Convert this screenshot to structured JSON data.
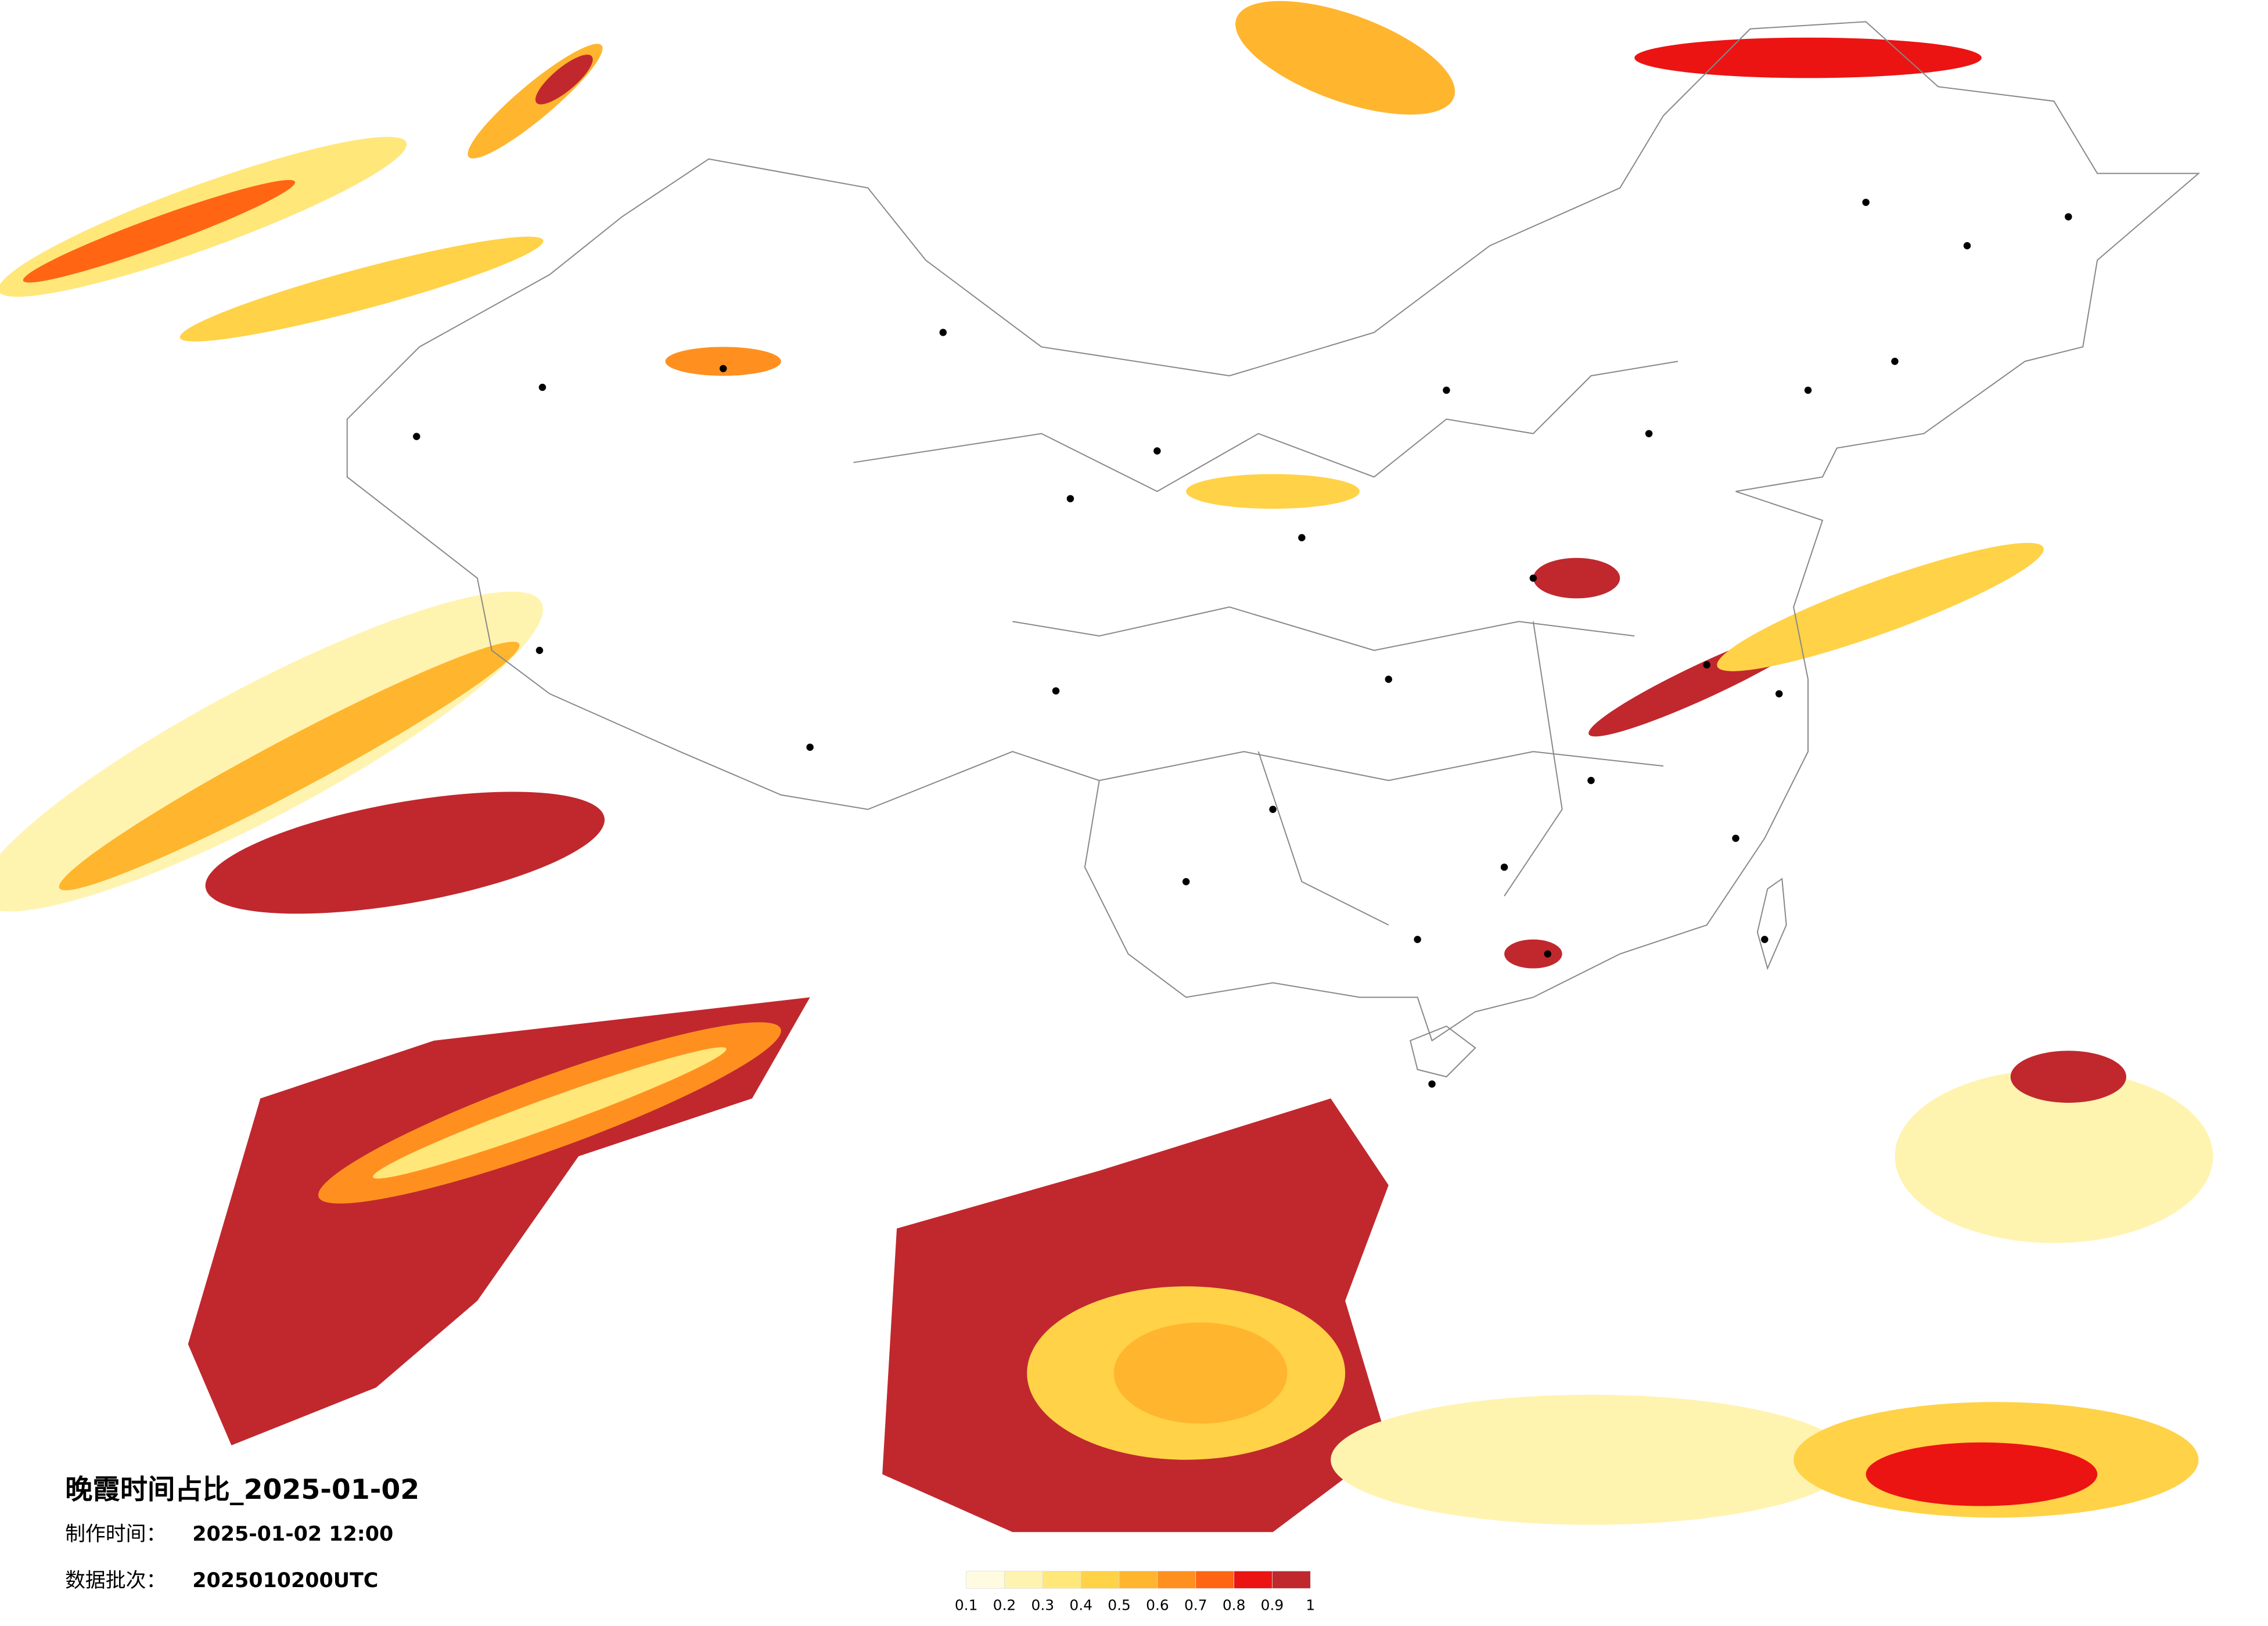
{
  "title": "晚霞时间占比_2025-01-02",
  "production_time": {
    "label": "制作时间：",
    "value": "2025-01-02 12:00"
  },
  "data_batch": {
    "label": "数据批次：",
    "value": "2025010200UTC"
  },
  "legend": {
    "ticks": [
      0.1,
      0.2,
      0.3,
      0.4,
      0.5,
      0.6,
      0.7,
      0.8,
      0.9,
      1
    ],
    "colors": [
      "#fffbe0",
      "#fff3b0",
      "#ffe77a",
      "#ffd247",
      "#ffb52e",
      "#ff9020",
      "#ff6512",
      "#ec1313",
      "#c0282e"
    ]
  }
}
